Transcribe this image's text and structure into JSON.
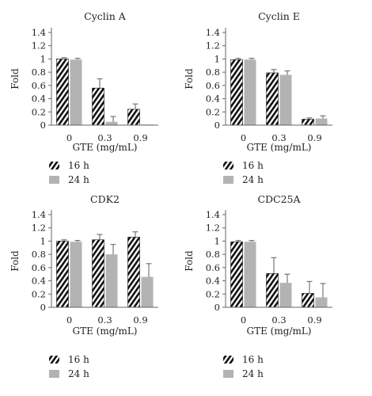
{
  "chart_data": [
    {
      "type": "bar",
      "title": "Cyclin A",
      "categories": [
        "0",
        "0.3",
        "0.9"
      ],
      "xlabel": "GTE (mg/mL)",
      "ylabel": "Fold",
      "ylim": [
        0,
        1.4
      ],
      "yticks": [
        "0",
        "0.2",
        "0.4",
        "0.6",
        "0.8",
        "1",
        "1.2",
        "1.4"
      ],
      "series": [
        {
          "name": "16 h",
          "values": [
            1.0,
            0.56,
            0.24
          ],
          "errors": [
            0.02,
            0.14,
            0.08
          ]
        },
        {
          "name": "24 h",
          "values": [
            0.99,
            0.05,
            0.01
          ],
          "errors": [
            0.02,
            0.08,
            0.0
          ]
        }
      ]
    },
    {
      "type": "bar",
      "title": "Cyclin E",
      "categories": [
        "0",
        "0.3",
        "0.9"
      ],
      "xlabel": "GTE (mg/mL)",
      "ylabel": "Fold",
      "ylim": [
        0,
        1.4
      ],
      "yticks": [
        "0",
        "0.2",
        "0.4",
        "0.6",
        "0.8",
        "1",
        "1.2",
        "1.4"
      ],
      "series": [
        {
          "name": "16 h",
          "values": [
            0.99,
            0.79,
            0.09
          ],
          "errors": [
            0.02,
            0.05,
            0.02
          ]
        },
        {
          "name": "24 h",
          "values": [
            0.99,
            0.76,
            0.1
          ],
          "errors": [
            0.02,
            0.06,
            0.04
          ]
        }
      ]
    },
    {
      "type": "bar",
      "title": "CDK2",
      "categories": [
        "0",
        "0.3",
        "0.9"
      ],
      "xlabel": "GTE (mg/mL)",
      "ylabel": "Fold",
      "ylim": [
        0,
        1.4
      ],
      "yticks": [
        "0",
        "0.2",
        "0.4",
        "0.6",
        "0.8",
        "1",
        "1.2",
        "1.4"
      ],
      "series": [
        {
          "name": "16 h",
          "values": [
            1.0,
            1.02,
            1.06
          ],
          "errors": [
            0.02,
            0.08,
            0.08
          ]
        },
        {
          "name": "24 h",
          "values": [
            0.99,
            0.8,
            0.46
          ],
          "errors": [
            0.02,
            0.15,
            0.2
          ]
        }
      ]
    },
    {
      "type": "bar",
      "title": "CDC25A",
      "categories": [
        "0",
        "0.3",
        "0.9"
      ],
      "xlabel": "GTE (mg/mL)",
      "ylabel": "Fold",
      "ylim": [
        0,
        1.4
      ],
      "yticks": [
        "0",
        "0.2",
        "0.4",
        "0.6",
        "0.8",
        "1",
        "1.2",
        "1.4"
      ],
      "series": [
        {
          "name": "16 h",
          "values": [
            0.99,
            0.51,
            0.21
          ],
          "errors": [
            0.02,
            0.24,
            0.18
          ]
        },
        {
          "name": "24 h",
          "values": [
            0.99,
            0.37,
            0.15
          ],
          "errors": [
            0.02,
            0.13,
            0.21
          ]
        }
      ]
    }
  ],
  "colors": {
    "bar_24h": "#b3b3b3",
    "hatch": "#111111",
    "axis": "#666666",
    "error": "#777777"
  }
}
